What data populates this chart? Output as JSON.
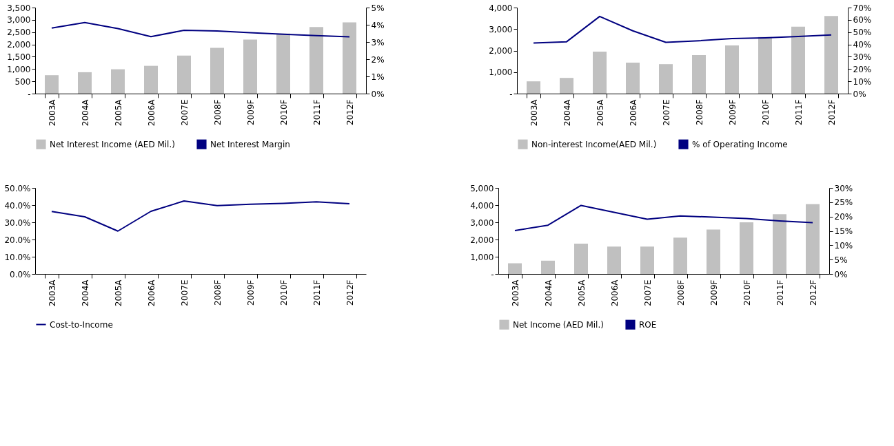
{
  "chart_data": [
    {
      "type": "bar",
      "categories": [
        "2003A",
        "2004A",
        "2005A",
        "2006A",
        "2007E",
        "2008F",
        "2009F",
        "2010F",
        "2011F",
        "2012F"
      ],
      "legend": "bottom",
      "ylim": [
        0,
        3500
      ],
      "yticks": [
        {
          "value": 0,
          "label": "-"
        },
        {
          "value": 500,
          "label": "500"
        },
        {
          "value": 1000,
          "label": "1,000"
        },
        {
          "value": 1500,
          "label": "1,500"
        },
        {
          "value": 2000,
          "label": "2,000"
        },
        {
          "value": 2500,
          "label": "2,500"
        },
        {
          "value": 3000,
          "label": "3,000"
        },
        {
          "value": 3500,
          "label": "3,500"
        }
      ],
      "y2lim": [
        0,
        5
      ],
      "y2ticks": [
        {
          "value": 0,
          "label": "0%"
        },
        {
          "value": 1,
          "label": "1%"
        },
        {
          "value": 2,
          "label": "2%"
        },
        {
          "value": 3,
          "label": "3%"
        },
        {
          "value": 4,
          "label": "4%"
        },
        {
          "value": 5,
          "label": "5%"
        }
      ],
      "series": [
        {
          "name": "Net Interest Income (AED Mil.)",
          "color": "#c0c0c0",
          "values": [
            750,
            870,
            990,
            1130,
            1550,
            1860,
            2200,
            2440,
            2710,
            2900
          ]
        },
        {
          "name": "Net Interest Margin",
          "type": "line",
          "axis": "y2",
          "color": "#000080",
          "values": [
            3.81,
            4.13,
            3.78,
            3.31,
            3.68,
            3.64,
            3.54,
            3.45,
            3.37,
            3.3
          ]
        }
      ]
    },
    {
      "type": "bar",
      "categories": [
        "2003A",
        "2004A",
        "2005A",
        "2006A",
        "2007E",
        "2008F",
        "2009F",
        "2010F",
        "2011F",
        "2012F"
      ],
      "legend": "bottom",
      "ylim": [
        0,
        4000
      ],
      "yticks": [
        {
          "value": 0,
          "label": "-"
        },
        {
          "value": 1000,
          "label": "1,000"
        },
        {
          "value": 2000,
          "label": "2,000"
        },
        {
          "value": 3000,
          "label": "3,000"
        },
        {
          "value": 4000,
          "label": "4,000"
        }
      ],
      "y2lim": [
        0,
        70
      ],
      "y2ticks": [
        {
          "value": 0,
          "label": "0%"
        },
        {
          "value": 10,
          "label": "10%"
        },
        {
          "value": 20,
          "label": "20%"
        },
        {
          "value": 30,
          "label": "30%"
        },
        {
          "value": 40,
          "label": "40%"
        },
        {
          "value": 50,
          "label": "50%"
        },
        {
          "value": 60,
          "label": "60%"
        },
        {
          "value": 70,
          "label": "70%"
        }
      ],
      "series": [
        {
          "name": "Non-interest Income(AED Mil.)",
          "color": "#c0c0c0",
          "values": [
            570,
            730,
            1950,
            1440,
            1370,
            1790,
            2240,
            2630,
            3110,
            3610
          ]
        },
        {
          "name": "% of Operating Income",
          "type": "line",
          "axis": "y2",
          "color": "#000080",
          "values": [
            41.1,
            42.2,
            62.8,
            51.1,
            41.7,
            43.0,
            44.8,
            45.4,
            46.5,
            47.8
          ]
        }
      ]
    },
    {
      "type": "line",
      "categories": [
        "2003A",
        "2004A",
        "2005A",
        "2006A",
        "2007E",
        "2008F",
        "2009F",
        "2010F",
        "2011F",
        "2012F"
      ],
      "legend": "bottom",
      "ylim": [
        0,
        50
      ],
      "yticks": [
        {
          "value": 0,
          "label": "0.0%"
        },
        {
          "value": 10,
          "label": "10.0%"
        },
        {
          "value": 20,
          "label": "20.0%"
        },
        {
          "value": 30,
          "label": "30.0%"
        },
        {
          "value": 40,
          "label": "40.0%"
        },
        {
          "value": 50,
          "label": "50.0%"
        }
      ],
      "series": [
        {
          "name": "Cost-to-Income",
          "color": "#000080",
          "values": [
            36.3,
            33.2,
            24.9,
            36.4,
            42.4,
            39.7,
            40.5,
            41.0,
            41.9,
            40.8
          ]
        }
      ]
    },
    {
      "type": "bar",
      "categories": [
        "2003A",
        "2004A",
        "2005A",
        "2006A",
        "2007E",
        "2008F",
        "2009F",
        "2010F",
        "2011F",
        "2012F"
      ],
      "legend": "bottom",
      "ylim": [
        0,
        5000
      ],
      "yticks": [
        {
          "value": 0,
          "label": "-"
        },
        {
          "value": 1000,
          "label": "1,000"
        },
        {
          "value": 2000,
          "label": "2,000"
        },
        {
          "value": 3000,
          "label": "3,000"
        },
        {
          "value": 4000,
          "label": "4,000"
        },
        {
          "value": 5000,
          "label": "5,000"
        }
      ],
      "y2lim": [
        0,
        30
      ],
      "y2ticks": [
        {
          "value": 0,
          "label": "0%"
        },
        {
          "value": 5,
          "label": "5%"
        },
        {
          "value": 10,
          "label": "10%"
        },
        {
          "value": 15,
          "label": "15%"
        },
        {
          "value": 20,
          "label": "20%"
        },
        {
          "value": 25,
          "label": "25%"
        },
        {
          "value": 30,
          "label": "30%"
        }
      ],
      "series": [
        {
          "name": "Net Income (AED Mil.)",
          "color": "#c0c0c0",
          "values": [
            620,
            770,
            1760,
            1590,
            1590,
            2110,
            2580,
            3000,
            3470,
            4060
          ]
        },
        {
          "name": "ROE",
          "type": "line",
          "axis": "y2",
          "color": "#000080",
          "values": [
            15.1,
            17.0,
            23.9,
            21.5,
            19.1,
            20.2,
            19.8,
            19.3,
            18.5,
            17.9
          ]
        }
      ]
    }
  ]
}
